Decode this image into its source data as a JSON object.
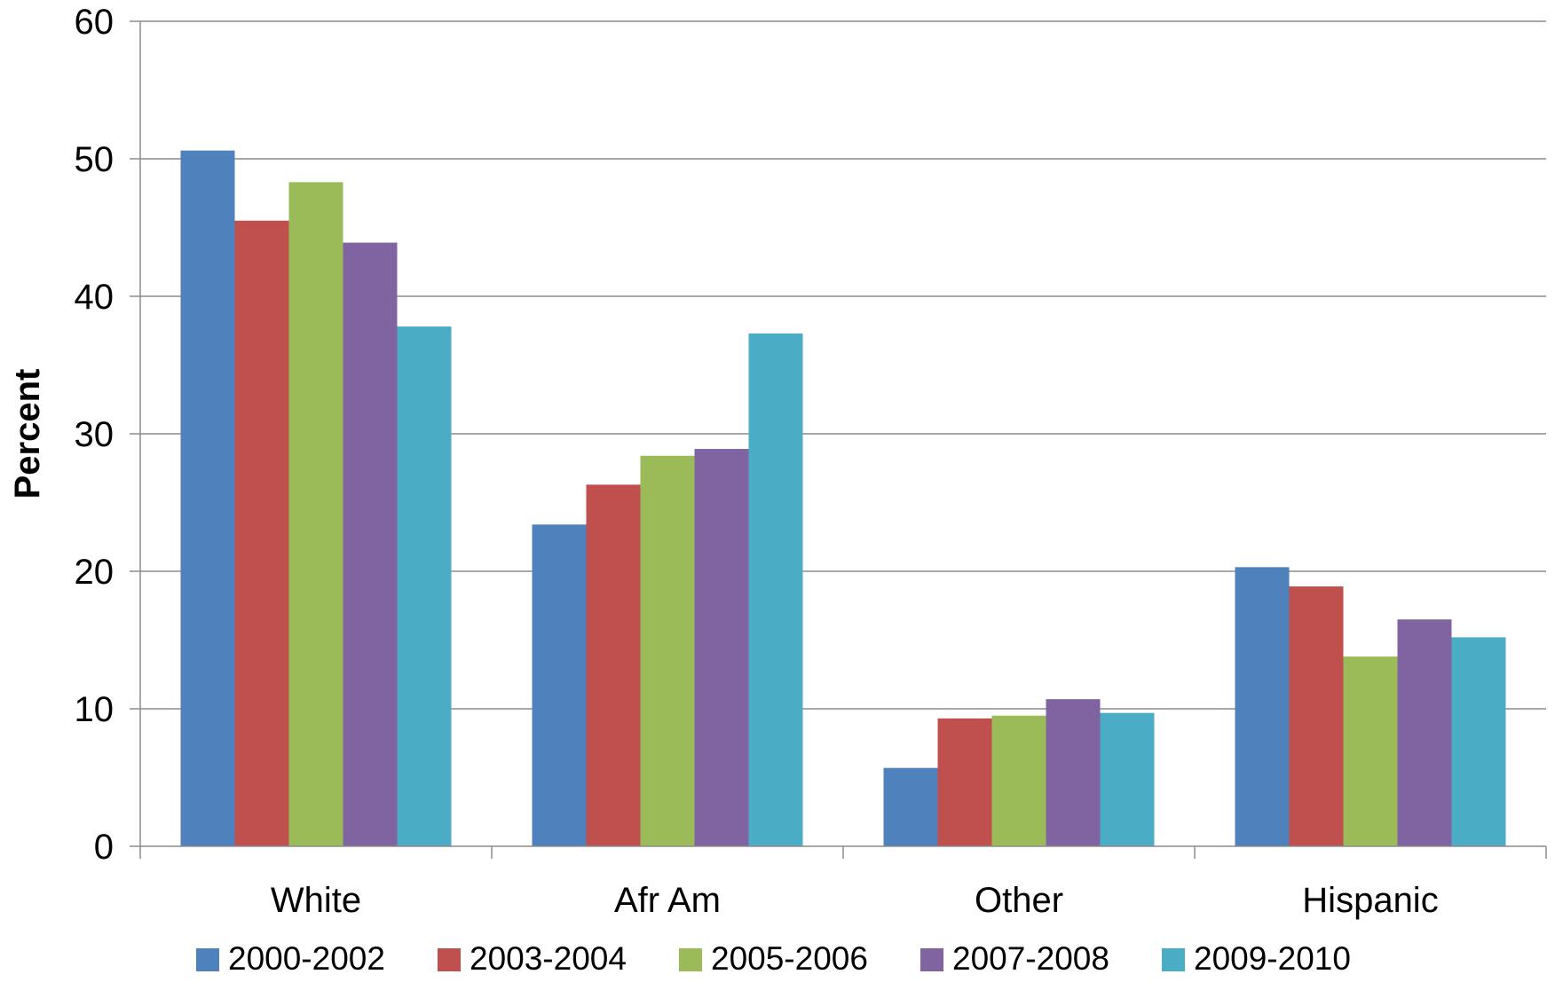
{
  "chart_data": {
    "type": "bar",
    "title": "",
    "xlabel": "",
    "ylabel": "Percent",
    "ylim": [
      0,
      60
    ],
    "yticks": [
      0,
      10,
      20,
      30,
      40,
      50,
      60
    ],
    "grid": true,
    "legend_position": "bottom",
    "categories": [
      "White",
      "Afr Am",
      "Other",
      "Hispanic"
    ],
    "series": [
      {
        "name": "2000-2002",
        "color": "#4F81BD",
        "values": [
          50.6,
          23.4,
          5.7,
          20.3
        ]
      },
      {
        "name": "2003-2004",
        "color": "#C0504D",
        "values": [
          45.5,
          26.3,
          9.3,
          18.9
        ]
      },
      {
        "name": "2005-2006",
        "color": "#9BBB59",
        "values": [
          48.3,
          28.4,
          9.5,
          13.8
        ]
      },
      {
        "name": "2007-2008",
        "color": "#8064A2",
        "values": [
          43.9,
          28.9,
          10.7,
          16.5
        ]
      },
      {
        "name": "2009-2010",
        "color": "#4BACC6",
        "values": [
          37.8,
          37.3,
          9.7,
          15.2
        ]
      }
    ]
  }
}
